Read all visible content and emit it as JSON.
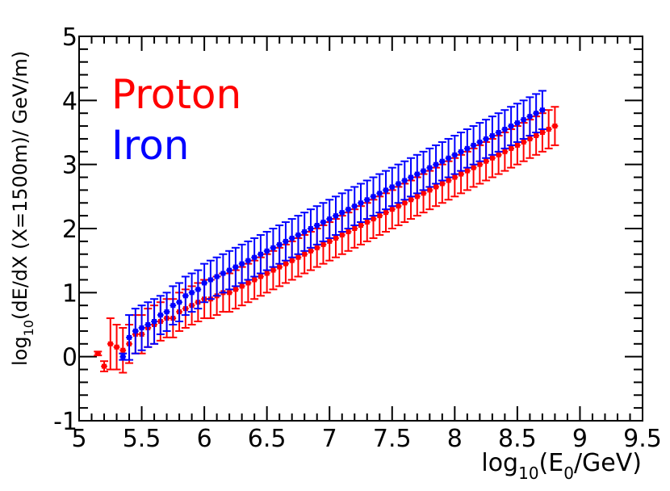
{
  "chart_data": {
    "type": "scatter",
    "title": "",
    "xlabel": {
      "prefix": "log",
      "sub": "10",
      "mid": "(E",
      "sub2": "0",
      "suffix": "/GeV)"
    },
    "ylabel": {
      "prefix": "log",
      "sub": "10",
      "suffix": "(dE/dX (X=1500m)/ GeV/m)"
    },
    "xlim": [
      5,
      9.5
    ],
    "ylim": [
      -1,
      5
    ],
    "x_ticks": [
      "5",
      "5.5",
      "6",
      "6.5",
      "7",
      "7.5",
      "8",
      "8.5",
      "9",
      "9.5"
    ],
    "y_ticks": [
      "-1",
      "0",
      "1",
      "2",
      "3",
      "4",
      "5"
    ],
    "grid": false,
    "legend_position": "top-left",
    "series": [
      {
        "name": "Proton",
        "color": "#ff0000",
        "x_start": 5.15,
        "x_step": 0.05,
        "y": [
          0.05,
          -0.15,
          0.2,
          0.15,
          0.1,
          0.2,
          0.35,
          0.35,
          0.45,
          0.5,
          0.55,
          0.6,
          0.6,
          0.7,
          0.75,
          0.8,
          0.85,
          0.9,
          0.9,
          0.95,
          1.0,
          1.0,
          1.05,
          1.1,
          1.15,
          1.2,
          1.25,
          1.3,
          1.35,
          1.4,
          1.45,
          1.5,
          1.55,
          1.6,
          1.65,
          1.7,
          1.75,
          1.8,
          1.85,
          1.9,
          1.95,
          2.0,
          2.05,
          2.1,
          2.15,
          2.2,
          2.25,
          2.3,
          2.35,
          2.4,
          2.45,
          2.5,
          2.55,
          2.6,
          2.65,
          2.7,
          2.75,
          2.8,
          2.85,
          2.9,
          2.95,
          3.0,
          3.05,
          3.1,
          3.15,
          3.2,
          3.25,
          3.3,
          3.35,
          3.4,
          3.45,
          3.5,
          3.55,
          3.6
        ],
        "err": [
          0.03,
          0.08,
          0.4,
          0.35,
          0.35,
          0.3,
          0.3,
          0.3,
          0.3,
          0.3,
          0.3,
          0.3,
          0.3,
          0.3,
          0.3,
          0.3,
          0.3,
          0.3,
          0.3,
          0.3,
          0.3,
          0.3,
          0.3,
          0.3,
          0.3,
          0.3,
          0.3,
          0.3,
          0.3,
          0.3,
          0.3,
          0.3,
          0.3,
          0.3,
          0.3,
          0.3,
          0.3,
          0.3,
          0.3,
          0.3,
          0.3,
          0.3,
          0.3,
          0.3,
          0.3,
          0.3,
          0.3,
          0.3,
          0.3,
          0.3,
          0.3,
          0.3,
          0.3,
          0.3,
          0.3,
          0.3,
          0.3,
          0.3,
          0.3,
          0.3,
          0.3,
          0.3,
          0.3,
          0.3,
          0.3,
          0.3,
          0.3,
          0.3,
          0.3,
          0.3,
          0.3,
          0.3,
          0.3,
          0.3
        ]
      },
      {
        "name": "Iron",
        "color": "#0000ff",
        "x_start": 5.35,
        "x_step": 0.05,
        "y": [
          0.0,
          0.3,
          0.4,
          0.45,
          0.5,
          0.55,
          0.65,
          0.7,
          0.8,
          0.85,
          0.95,
          1.0,
          1.05,
          1.15,
          1.2,
          1.25,
          1.3,
          1.35,
          1.4,
          1.45,
          1.5,
          1.55,
          1.6,
          1.65,
          1.7,
          1.75,
          1.8,
          1.85,
          1.9,
          1.95,
          2.0,
          2.05,
          2.1,
          2.15,
          2.2,
          2.25,
          2.3,
          2.35,
          2.4,
          2.45,
          2.5,
          2.55,
          2.6,
          2.65,
          2.7,
          2.75,
          2.8,
          2.85,
          2.9,
          2.95,
          3.0,
          3.05,
          3.1,
          3.15,
          3.2,
          3.25,
          3.3,
          3.35,
          3.4,
          3.45,
          3.5,
          3.55,
          3.6,
          3.65,
          3.7,
          3.75,
          3.8,
          3.85
        ],
        "err": [
          0.05,
          0.35,
          0.35,
          0.35,
          0.35,
          0.35,
          0.3,
          0.3,
          0.3,
          0.3,
          0.3,
          0.3,
          0.3,
          0.3,
          0.3,
          0.3,
          0.3,
          0.3,
          0.3,
          0.3,
          0.3,
          0.3,
          0.3,
          0.3,
          0.3,
          0.3,
          0.3,
          0.3,
          0.3,
          0.3,
          0.3,
          0.3,
          0.3,
          0.3,
          0.3,
          0.3,
          0.3,
          0.3,
          0.3,
          0.3,
          0.3,
          0.3,
          0.3,
          0.3,
          0.3,
          0.3,
          0.3,
          0.3,
          0.3,
          0.3,
          0.3,
          0.3,
          0.3,
          0.3,
          0.3,
          0.3,
          0.3,
          0.3,
          0.3,
          0.3,
          0.3,
          0.3,
          0.3,
          0.3,
          0.3,
          0.3,
          0.3,
          0.3
        ]
      }
    ]
  }
}
